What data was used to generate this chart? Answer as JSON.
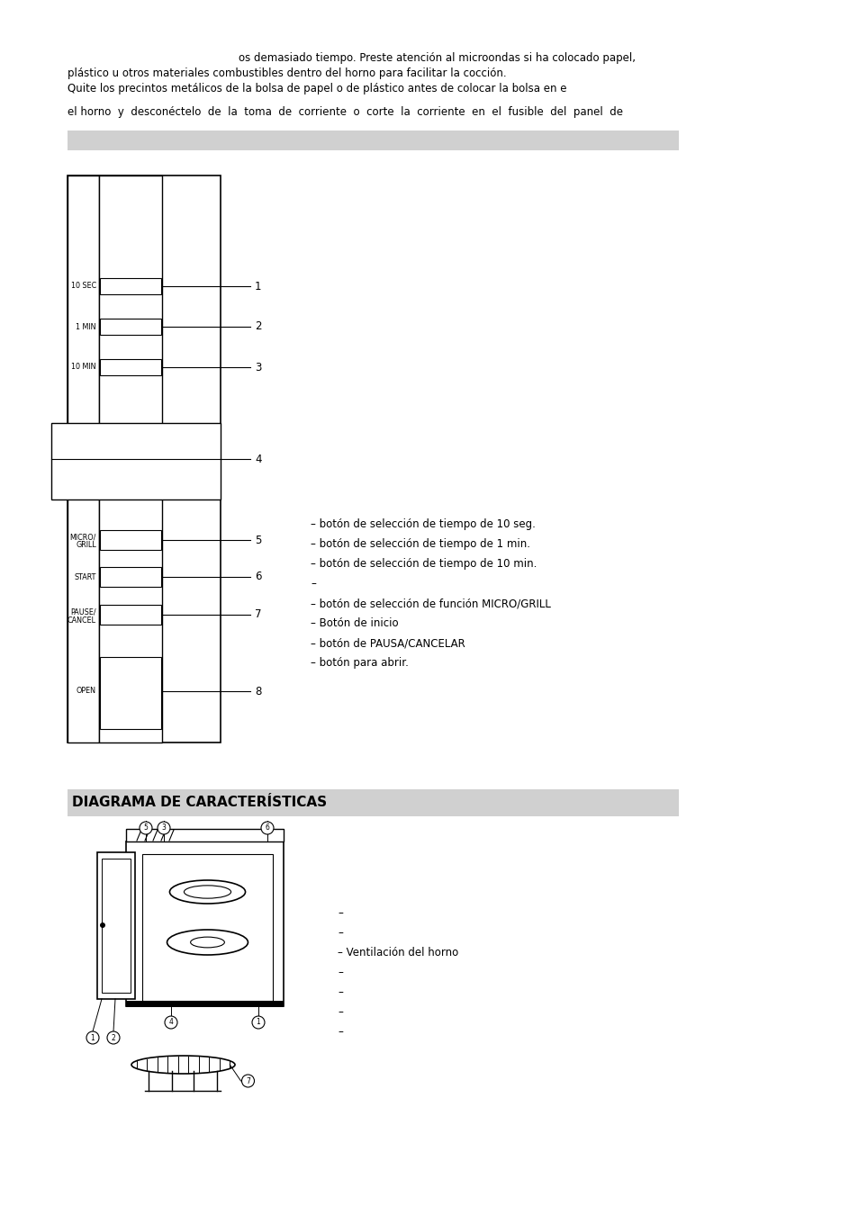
{
  "background_color": "#ffffff",
  "text_color": "#000000",
  "gray_bar_color": "#d0d0d0",
  "intro_text_1": "os demasiado tiempo. Preste atención al microondas si ha colocado papel,",
  "intro_text_2": "plástico u otros materiales combustibles dentro del horno para facilitar la cocción.",
  "intro_text_3": "Quite los precintos metálicos de la bolsa de papel o de plástico antes de colocar la bolsa en e",
  "intro_text_4": "el horno  y  desconéctelo  de  la  toma  de  corriente  o  corte  la  corriente  en  el  fusible  del  panel  de",
  "section_title": "DIAGRAMA DE CARACTERÍSTICAS",
  "legend_items": [
    "– botón de selección de tiempo de 10 seg.",
    "– botón de selección de tiempo de 1 min.",
    "– botón de selección de tiempo de 10 min.",
    "–",
    "– botón de selección de función MICRO/GRILL",
    "– Botón de inicio",
    "– botón de PAUSA/CANCELAR",
    "– botón para abrir."
  ],
  "legend2_items": [
    "–",
    "–",
    "– Ventilación del horno",
    "–",
    "–",
    "–",
    "–"
  ]
}
